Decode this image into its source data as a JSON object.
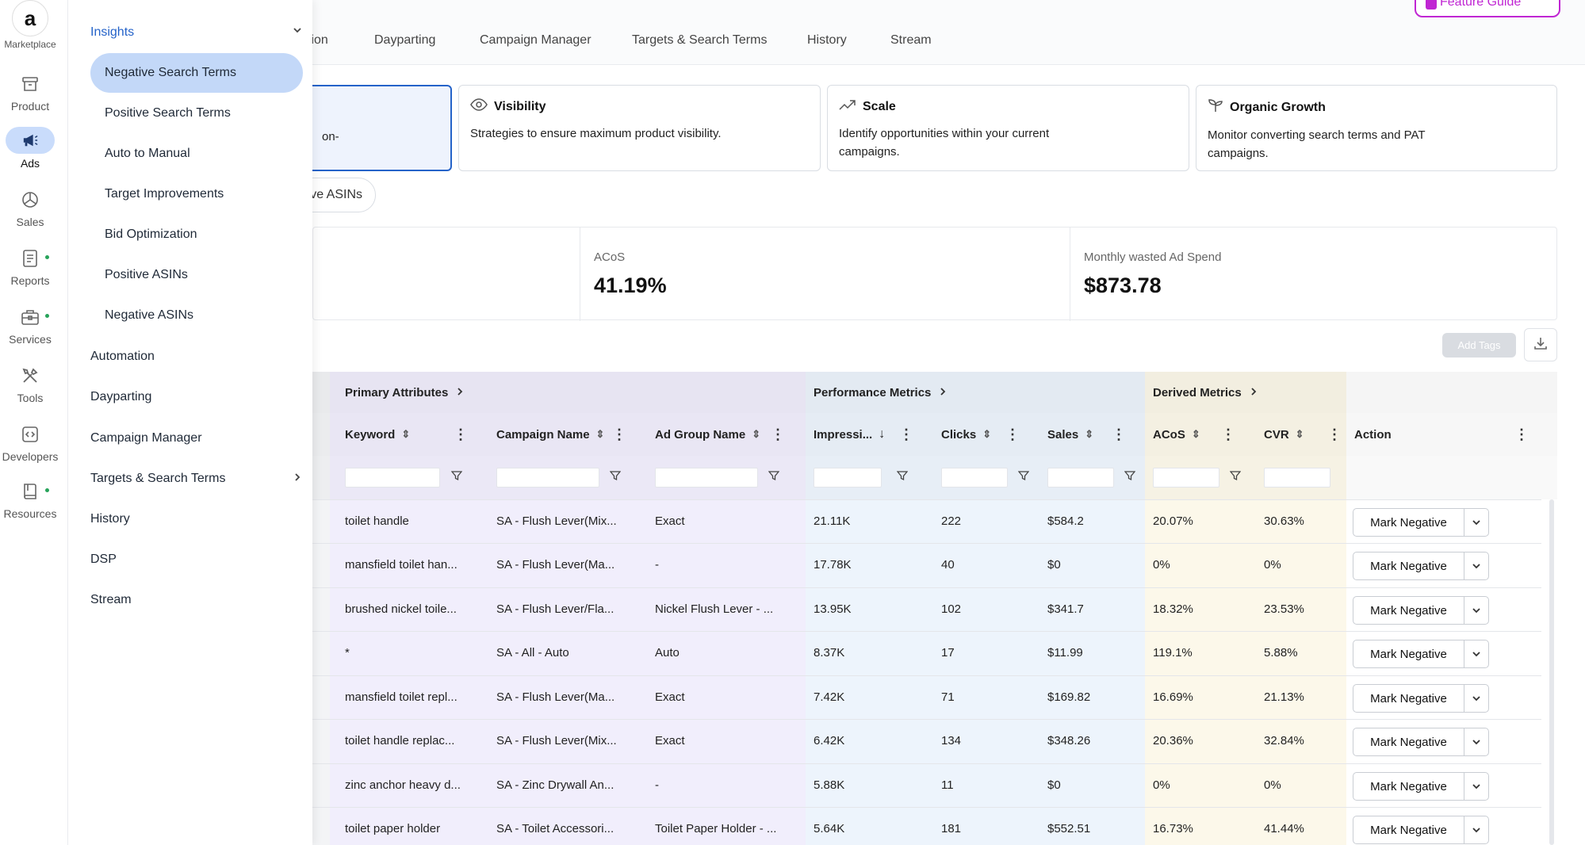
{
  "rail": {
    "marketplace_label": "Marketplace",
    "marketplace_logo": "a",
    "items": [
      {
        "label": "Product",
        "icon": "box-icon"
      },
      {
        "label": "Ads",
        "icon": "megaphone-icon"
      },
      {
        "label": "Sales",
        "icon": "pie-chart-icon"
      },
      {
        "label": "Reports",
        "icon": "report-icon"
      },
      {
        "label": "Services",
        "icon": "briefcase-icon"
      },
      {
        "label": "Tools",
        "icon": "tools-icon"
      },
      {
        "label": "Developers",
        "icon": "code-icon"
      },
      {
        "label": "Resources",
        "icon": "book-icon"
      }
    ],
    "accent_color": "#c9dcfb",
    "status_dot_color": "#27a35a"
  },
  "flyout": {
    "header": "Insights",
    "sub_items": [
      "Negative Search Terms",
      "Positive Search Terms",
      "Auto to Manual",
      "Target Improvements",
      "Bid Optimization",
      "Positive ASINs",
      "Negative ASINs"
    ],
    "items": [
      "Automation",
      "Dayparting",
      "Campaign Manager",
      "Targets & Search Terms",
      "History",
      "DSP",
      "Stream"
    ]
  },
  "topnav": {
    "partial_tab": "tion",
    "tabs": [
      "Dayparting",
      "Campaign Manager",
      "Targets & Search Terms",
      "History",
      "Stream"
    ],
    "feature_guide": "Feature Guide"
  },
  "cards": [
    {
      "title": "",
      "desc": "on-",
      "icon": ""
    },
    {
      "title": "Visibility",
      "desc": "Strategies to ensure maximum product visibility.",
      "icon": "eye-icon"
    },
    {
      "title": "Scale",
      "desc": "Identify opportunities within your current campaigns.",
      "icon": "trend-up-icon"
    },
    {
      "title": "Organic Growth",
      "desc": "Monitor converting search terms and PAT campaigns.",
      "icon": "sprout-icon"
    }
  ],
  "chip": "ve ASINs",
  "stats": [
    {
      "label": "ACoS",
      "value": "41.19%"
    },
    {
      "label": "Monthly wasted Ad Spend",
      "value": "$873.78"
    }
  ],
  "toolbar": {
    "add_tags": "Add Tags"
  },
  "table": {
    "groups": [
      {
        "title": "Primary Attributes",
        "color": "#f1eefc"
      },
      {
        "title": "Performance Metrics",
        "color": "#edf4fc"
      },
      {
        "title": "Derived Metrics",
        "color": "#fcf8ea"
      }
    ],
    "columns": [
      "Keyword",
      "Campaign Name",
      "Ad Group Name",
      "Impressi...",
      "Clicks",
      "Sales",
      "ACoS",
      "CVR",
      "Action"
    ],
    "rows": [
      {
        "keyword": "toilet handle",
        "campaign": "SA - Flush Lever(Mix...",
        "adgroup": "Exact",
        "impr": "21.11K",
        "clicks": "222",
        "sales": "$584.2",
        "acos": "20.07%",
        "cvr": "30.63%"
      },
      {
        "keyword": "mansfield toilet han...",
        "campaign": "SA - Flush Lever(Ma...",
        "adgroup": "-",
        "impr": "17.78K",
        "clicks": "40",
        "sales": "$0",
        "acos": "0%",
        "cvr": "0%"
      },
      {
        "keyword": "brushed nickel toile...",
        "campaign": "SA - Flush Lever/Fla...",
        "adgroup": "Nickel Flush Lever - ...",
        "impr": "13.95K",
        "clicks": "102",
        "sales": "$341.7",
        "acos": "18.32%",
        "cvr": "23.53%"
      },
      {
        "keyword": "*",
        "campaign": "SA - All - Auto",
        "adgroup": "Auto",
        "impr": "8.37K",
        "clicks": "17",
        "sales": "$11.99",
        "acos": "119.1%",
        "cvr": "5.88%"
      },
      {
        "keyword": "mansfield toilet repl...",
        "campaign": "SA - Flush Lever(Ma...",
        "adgroup": "Exact",
        "impr": "7.42K",
        "clicks": "71",
        "sales": "$169.82",
        "acos": "16.69%",
        "cvr": "21.13%"
      },
      {
        "keyword": "toilet handle replac...",
        "campaign": "SA - Flush Lever(Mix...",
        "adgroup": "Exact",
        "impr": "6.42K",
        "clicks": "134",
        "sales": "$348.26",
        "acos": "20.36%",
        "cvr": "32.84%"
      },
      {
        "keyword": "zinc anchor heavy d...",
        "campaign": "SA - Zinc Drywall An...",
        "adgroup": "-",
        "impr": "5.88K",
        "clicks": "11",
        "sales": "$0",
        "acos": "0%",
        "cvr": "0%"
      },
      {
        "keyword": "toilet paper holder",
        "campaign": "SA - Toilet Accessori...",
        "adgroup": "Toilet Paper Holder - ...",
        "impr": "5.64K",
        "clicks": "181",
        "sales": "$552.51",
        "acos": "16.73%",
        "cvr": "41.44%"
      }
    ],
    "action_label": "Mark Negative"
  }
}
